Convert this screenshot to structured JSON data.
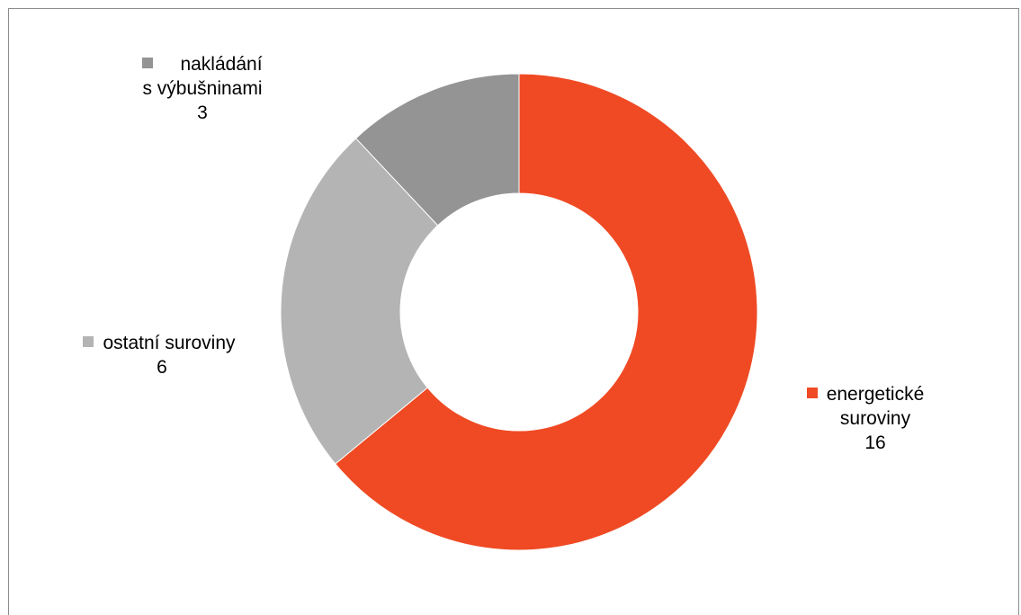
{
  "chart_data": {
    "type": "pie",
    "variant": "donut",
    "title": "",
    "slices": [
      {
        "label_lines": [
          "energetické",
          "suroviny"
        ],
        "label": "energetické suroviny",
        "value": 16,
        "value_text": "16",
        "color": "#ef4a24"
      },
      {
        "label_lines": [
          "ostatní suroviny"
        ],
        "label": "ostatní suroviny",
        "value": 6,
        "value_text": "6",
        "color": "#b4b4b4"
      },
      {
        "label_lines": [
          "nakládání",
          "s výbušninami"
        ],
        "label": "nakládání s výbušninami",
        "value": 3,
        "value_text": "3",
        "color": "#949494"
      }
    ],
    "start_angle_deg": 0,
    "direction": "clockwise",
    "legend": "inline data labels with color keys"
  }
}
